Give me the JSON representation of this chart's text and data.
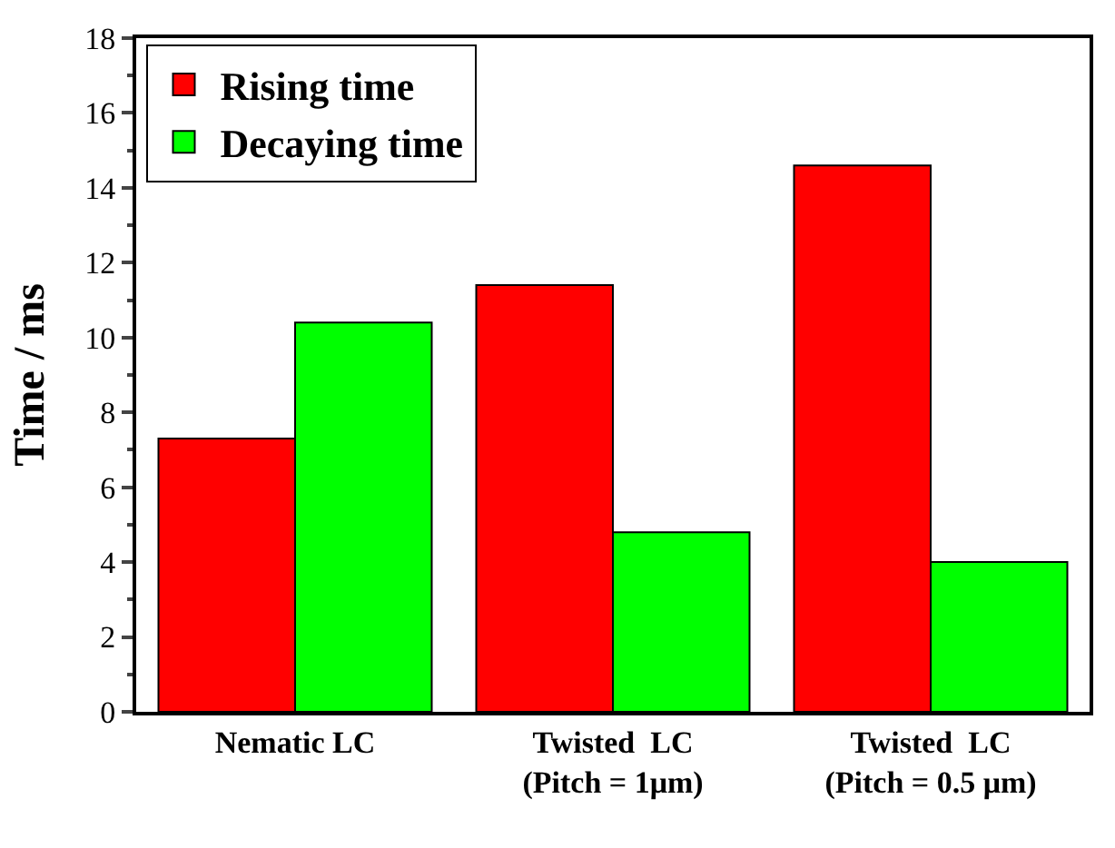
{
  "chart_data": {
    "type": "bar",
    "ylabel": "Time / ms",
    "categories": [
      "Nematic LC",
      "Twisted  LC\n(Pitch = 1μm)",
      "Twisted  LC\n(Pitch = 0.5 μm)"
    ],
    "series": [
      {
        "name": "Rising time",
        "color": "#ff0000",
        "values": [
          7.3,
          11.4,
          14.6
        ]
      },
      {
        "name": "Decaying time",
        "color": "#00ff00",
        "values": [
          10.4,
          4.8,
          4.0
        ]
      }
    ],
    "ylim": [
      0,
      18
    ],
    "yticks": [
      0,
      2,
      4,
      6,
      8,
      10,
      12,
      14,
      16,
      18
    ],
    "legend": "top left"
  }
}
